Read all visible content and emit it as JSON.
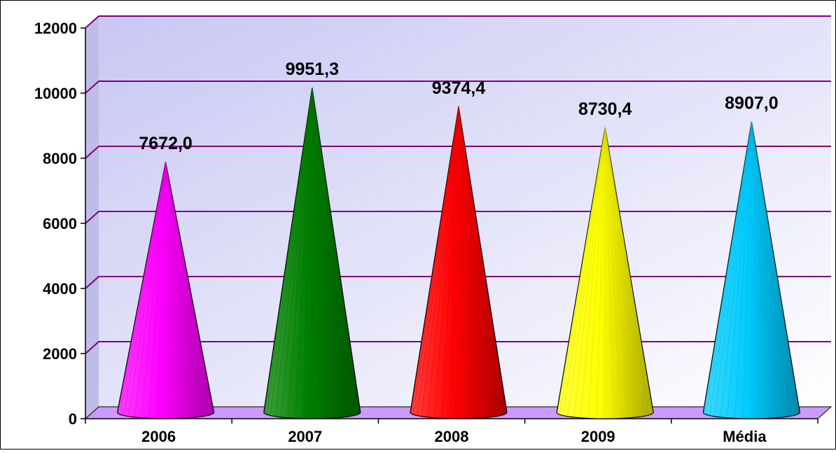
{
  "chart_data": {
    "type": "bar",
    "bar_shape": "cone",
    "style": "3d",
    "categories": [
      "2006",
      "2007",
      "2008",
      "2009",
      "Média"
    ],
    "values": [
      7672.0,
      9951.3,
      9374.4,
      8730.4,
      8907.0
    ],
    "data_labels": [
      "7672,0",
      "9951,3",
      "9374,4",
      "8730,4",
      "8907,0"
    ],
    "yticks": [
      "0",
      "2000",
      "4000",
      "6000",
      "8000",
      "10000",
      "12000"
    ],
    "ylim": [
      0,
      12000
    ],
    "grid": true,
    "legend": "none",
    "title": "",
    "xlabel": "",
    "ylabel": "",
    "colors": {
      "series": [
        "#ff00ff",
        "#008000",
        "#ff0000",
        "#ffff00",
        "#00ccff"
      ],
      "gridline": "#800080",
      "floor": "#cc99ff",
      "wall_start": "#c7c7f3",
      "wall_end": "#ffffff"
    }
  }
}
